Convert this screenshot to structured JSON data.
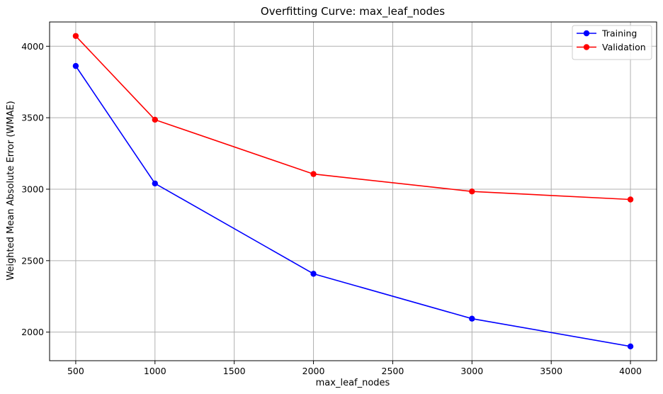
{
  "chart_data": {
    "type": "line",
    "title": "Overfitting Curve: max_leaf_nodes",
    "xlabel": "max_leaf_nodes",
    "ylabel": "Weighted Mean Absolute Error (WMAE)",
    "x": [
      500,
      1000,
      2000,
      3000,
      4000
    ],
    "xticks": [
      500,
      1000,
      1500,
      2000,
      2500,
      3000,
      3500,
      4000
    ],
    "yticks": [
      2000,
      2500,
      3000,
      3500,
      4000
    ],
    "xlim": [
      335,
      4165
    ],
    "ylim": [
      1800,
      4170
    ],
    "grid": true,
    "legend_position": "top-right",
    "series": [
      {
        "name": "Training",
        "color": "#0000ff",
        "values": [
          3862,
          3040,
          2408,
          2094,
          1900
        ]
      },
      {
        "name": "Validation",
        "color": "#ff0000",
        "values": [
          4072,
          3486,
          3106,
          2984,
          2928
        ]
      }
    ]
  }
}
